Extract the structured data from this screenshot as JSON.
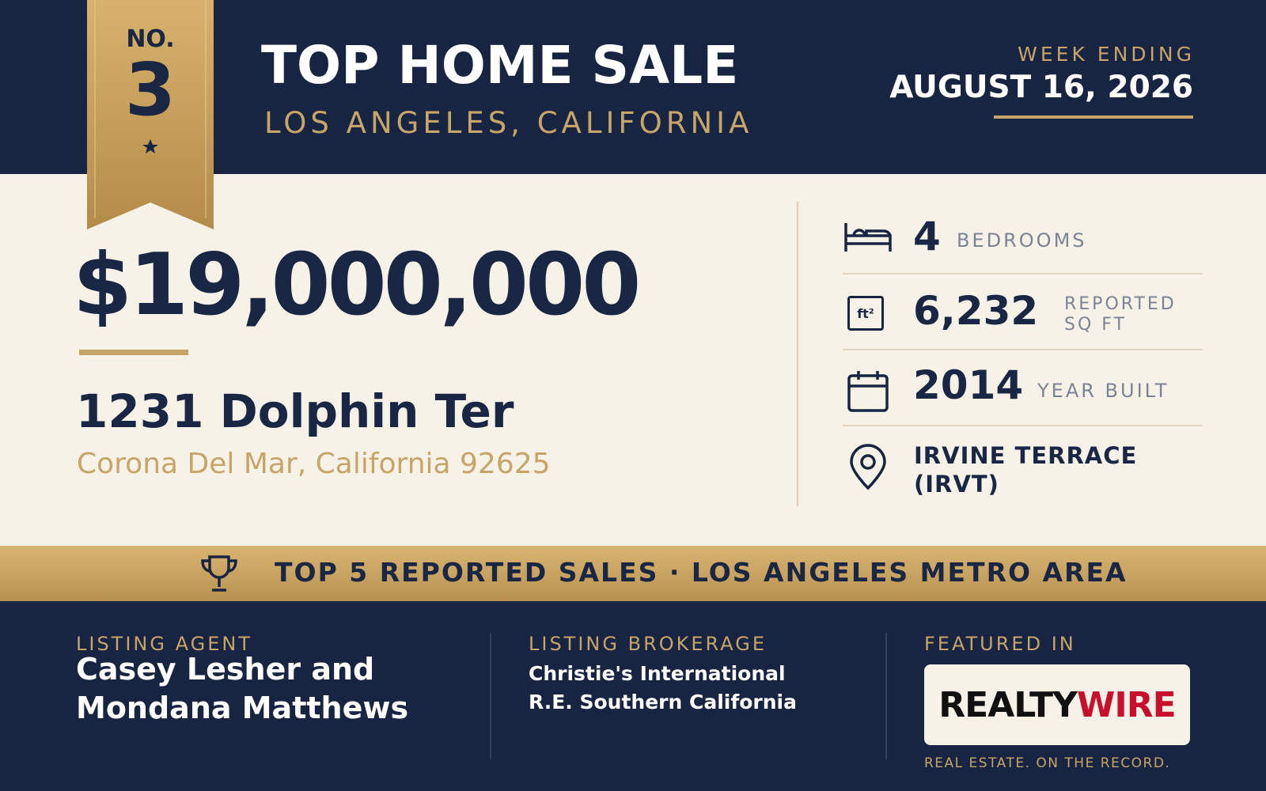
{
  "badge": {
    "prefix": "NO.",
    "rank": "3"
  },
  "header": {
    "title": "TOP HOME SALE",
    "location": "LOS ANGELES, CALIFORNIA",
    "week_label": "WEEK ENDING",
    "week_date": "AUGUST 16, 2026"
  },
  "sale": {
    "price": "$19,000,000",
    "street": "1231 Dolphin Ter",
    "city": "Corona Del Mar, California 92625"
  },
  "details": [
    {
      "value": "4",
      "label": "BEDROOMS"
    },
    {
      "icon_text": "ft²",
      "value": "6,232",
      "label": "REPORTED SQ FT"
    },
    {
      "value": "2014",
      "label": "YEAR BUILT"
    },
    {
      "value": "IRVINE TERRACE (IRVT)"
    }
  ],
  "banner": "TOP 5 REPORTED SALES · LOS ANGELES METRO AREA",
  "footer": {
    "agent_label": "LISTING AGENT",
    "agent": "Casey Lesher and Mondana Matthews",
    "brokerage_label": "LISTING BROKERAGE",
    "brokerage": "Christie's International R.E. Southern California",
    "featured_label": "FEATURED IN",
    "logo": {
      "first": "REALTY",
      "second": "WIRE"
    },
    "tagline": "REAL ESTATE. ON THE RECORD."
  }
}
